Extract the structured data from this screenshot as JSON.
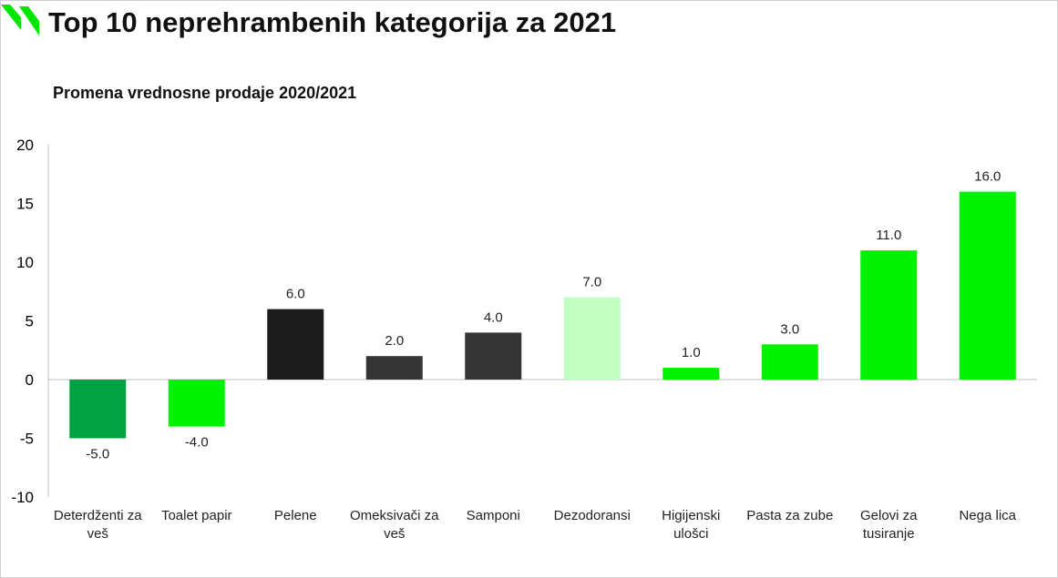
{
  "header": {
    "title": "Top 10 neprehrambenih kategorija za 2021",
    "logo_icon": "brand-logo-icon",
    "logo_color": "#00e600"
  },
  "chart_data": {
    "type": "bar",
    "title": "Promena vrednosne prodaje 2020/2021",
    "xlabel": "",
    "ylabel": "",
    "ylim": [
      -10,
      20
    ],
    "yticks": [
      20,
      15,
      10,
      5,
      0,
      -5,
      -10
    ],
    "grid": false,
    "legend": "none",
    "categories": [
      [
        "Deterdženti za",
        "veš"
      ],
      [
        "Toalet papir"
      ],
      [
        "Pelene"
      ],
      [
        "Omeksivači za",
        "veš"
      ],
      [
        "Samponi"
      ],
      [
        "Dezodoransi"
      ],
      [
        "Higijenski",
        "ulošci"
      ],
      [
        "Pasta za zube"
      ],
      [
        "Gelovi za",
        "tusiranje"
      ],
      [
        "Nega lica"
      ]
    ],
    "values": [
      -5.0,
      -4.0,
      6.0,
      2.0,
      4.0,
      7.0,
      1.0,
      3.0,
      11.0,
      16.0
    ],
    "value_labels": [
      "-5.0",
      "-4.0",
      "6.0",
      "2.0",
      "4.0",
      "7.0",
      "1.0",
      "3.0",
      "11.0",
      "16.0"
    ],
    "colors": [
      "#00a243",
      "#00f200",
      "#1c1c1c",
      "#353535",
      "#353535",
      "#bfffbf",
      "#00f200",
      "#00f200",
      "#00f200",
      "#00f200"
    ],
    "axis_color": "#bfbfbf"
  }
}
